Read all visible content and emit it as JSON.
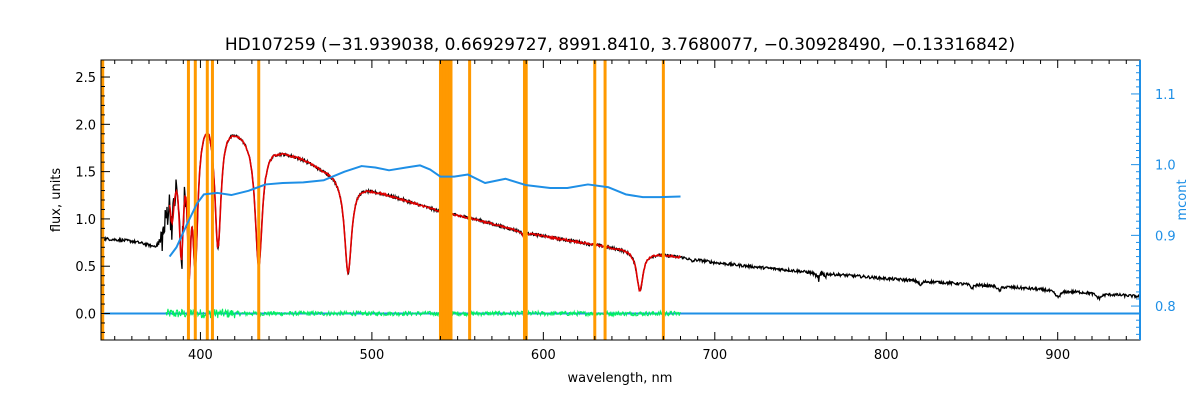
{
  "chart_data": {
    "type": "line",
    "title": "HD107259    (−31.939038, 0.66929727, 8991.8410, 3.7680077, −0.30928490, −0.13316842)",
    "xlabel": "wavelength, nm",
    "ylabel": "flux, units",
    "y2label": "mcont",
    "xlim": [
      342,
      948
    ],
    "ylim": [
      -0.28,
      2.68
    ],
    "y2lim": [
      0.752,
      1.148
    ],
    "xticks": [
      400,
      500,
      600,
      700,
      800,
      900
    ],
    "yticks": [
      0.0,
      0.5,
      1.0,
      1.5,
      2.0,
      2.5
    ],
    "y2ticks": [
      0.8,
      0.9,
      1.0,
      1.1
    ],
    "grid": false,
    "colors": {
      "observed": "#000000",
      "model": "#e00000",
      "residual": "#00f060",
      "continuum": "#1e8fe6",
      "masks": "#ff9900",
      "zero_line": "#1e8fe6"
    },
    "mask_lines": [
      343,
      393,
      397,
      404,
      407,
      434,
      540,
      542,
      544,
      546,
      557,
      589,
      590,
      630,
      636,
      670
    ],
    "masks": [
      [
        540,
        547
      ]
    ],
    "continuum": {
      "x": [
        382,
        386,
        392,
        398,
        402,
        410,
        418,
        428,
        438,
        448,
        460,
        472,
        484,
        494,
        502,
        510,
        520,
        528,
        534,
        540,
        548,
        556,
        566,
        578,
        590,
        604,
        614,
        626,
        638,
        648,
        658,
        668,
        680
      ],
      "y": [
        0.87,
        0.883,
        0.915,
        0.945,
        0.958,
        0.96,
        0.957,
        0.963,
        0.972,
        0.974,
        0.975,
        0.978,
        0.99,
        0.998,
        0.996,
        0.992,
        0.996,
        0.999,
        0.993,
        0.983,
        0.983,
        0.986,
        0.974,
        0.98,
        0.971,
        0.967,
        0.967,
        0.972,
        0.968,
        0.958,
        0.954,
        0.954,
        0.955
      ]
    },
    "observed_anchors": {
      "x": [
        342,
        360,
        372,
        376,
        379,
        382,
        386,
        390,
        395,
        400,
        405,
        410,
        420,
        430,
        440,
        450,
        460,
        470,
        480,
        500,
        520,
        540,
        560,
        580,
        600,
        620,
        640,
        660,
        680,
        700,
        720,
        760,
        800,
        840,
        880,
        920,
        948
      ],
      "y": [
        0.8,
        0.78,
        0.75,
        0.78,
        1.0,
        1.5,
        1.8,
        2.1,
        2.15,
        2.12,
        2.2,
        2.1,
        2.0,
        1.9,
        1.8,
        1.72,
        1.65,
        1.55,
        1.48,
        1.32,
        1.2,
        1.08,
        1.0,
        0.9,
        0.82,
        0.76,
        0.7,
        0.65,
        0.6,
        0.54,
        0.5,
        0.43,
        0.37,
        0.32,
        0.27,
        0.22,
        0.18
      ]
    },
    "absorption_lines": [
      {
        "x": 383.5,
        "depth": 0.5,
        "width": 1.5
      },
      {
        "x": 388.9,
        "depth": 1.25,
        "width": 1.6
      },
      {
        "x": 393.4,
        "depth": 1.3,
        "width": 1.2
      },
      {
        "x": 397.0,
        "depth": 1.45,
        "width": 1.8
      },
      {
        "x": 410.2,
        "depth": 1.35,
        "width": 2.2
      },
      {
        "x": 434.0,
        "depth": 1.35,
        "width": 2.5
      },
      {
        "x": 486.1,
        "depth": 1.0,
        "width": 2.5
      },
      {
        "x": 589.0,
        "depth": 0.08,
        "width": 0.9
      },
      {
        "x": 656.3,
        "depth": 0.42,
        "width": 2.2
      },
      {
        "x": 686.8,
        "depth": 0.03,
        "width": 1.0
      },
      {
        "x": 760.5,
        "depth": 0.06,
        "width": 1.5
      },
      {
        "x": 820.0,
        "depth": 0.05,
        "width": 1.0
      },
      {
        "x": 850.0,
        "depth": 0.04,
        "width": 1.0
      },
      {
        "x": 866.0,
        "depth": 0.05,
        "width": 1.0
      },
      {
        "x": 900.0,
        "depth": 0.07,
        "width": 2.0
      },
      {
        "x": 924.0,
        "depth": 0.05,
        "width": 2.0
      }
    ],
    "model_range": [
      382,
      680
    ],
    "residual_range": [
      380,
      680
    ]
  }
}
